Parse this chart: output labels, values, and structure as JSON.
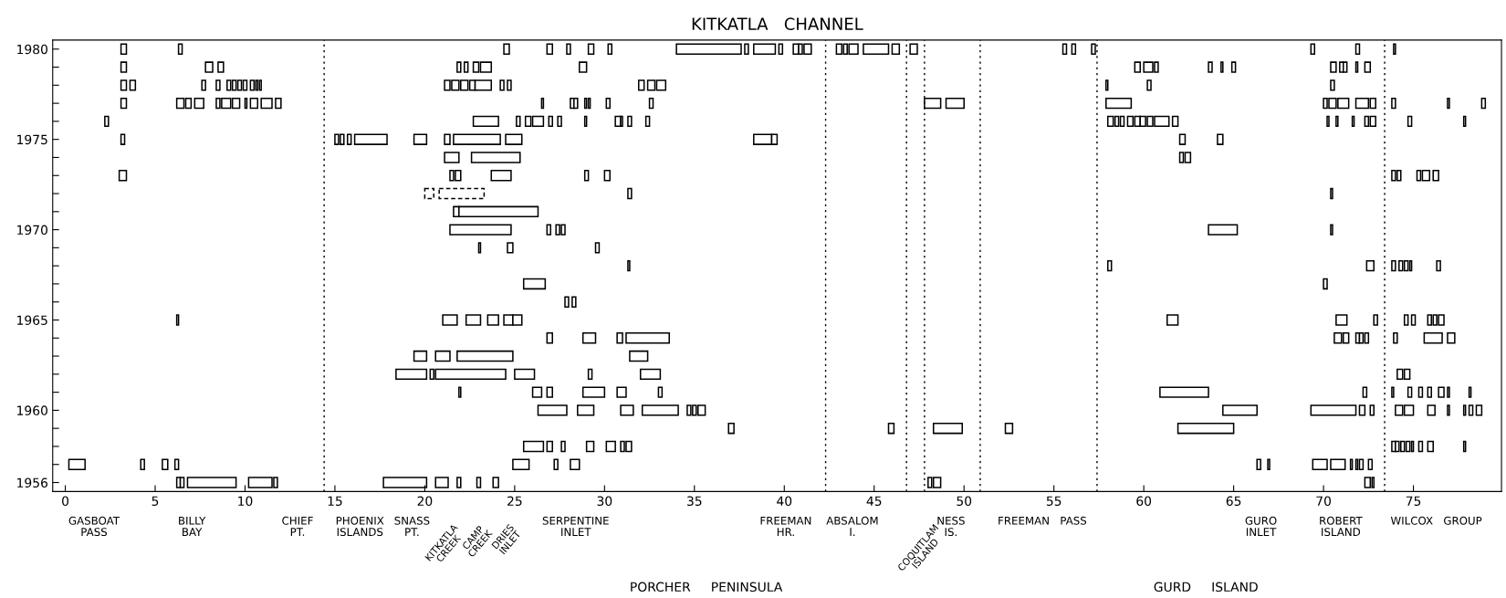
{
  "chart_data": {
    "type": "bar",
    "orientation": "horizontal",
    "title": "KITKATLA   CHANNEL",
    "categories": [
      "1980",
      null,
      null,
      null,
      null,
      "1975",
      null,
      null,
      null,
      null,
      "1970",
      null,
      null,
      null,
      null,
      "1965",
      null,
      null,
      null,
      null,
      "1960",
      null,
      null,
      null,
      "1956"
    ],
    "xlim": [
      -0.7,
      79.9
    ],
    "xticks": [
      0,
      5,
      10,
      15,
      20,
      25,
      30,
      35,
      40,
      45,
      50,
      55,
      60,
      65,
      70,
      75
    ],
    "series": [
      {
        "color": "#ffffff",
        "base": [
          3.1,
          3.1,
          3.1,
          3.1,
          2.2,
          3.1,
          21.1,
          3.0,
          31.3,
          21.6,
          21.4,
          23.0,
          31.3,
          25.5,
          27.8,
          6.2,
          26.8,
          19.4,
          18.4,
          21.9,
          26.3,
          36.9,
          25.5,
          0.2,
          6.2
        ],
        "values": [
          0.3,
          0.3,
          0.3,
          0.3,
          0.2,
          0.2,
          0.8,
          0.4,
          0.2,
          0.3,
          3.4,
          0.1,
          0.1,
          1.2,
          0.2,
          0.1,
          0.3,
          0.7,
          1.7,
          0.1,
          1.6,
          0.3,
          1.1,
          0.9,
          0.2
        ]
      },
      {
        "color": "#ffffff",
        "base": [
          6.3,
          7.8,
          3.6,
          6.2,
          22.7,
          15.0,
          22.6,
          21.4,
          70.4,
          21.9,
          26.8,
          24.6,
          58.0,
          70.0,
          28.2,
          21.0,
          28.8,
          20.6,
          20.3,
          26.0,
          28.5,
          45.8,
          26.8,
          4.2,
          6.4
        ],
        "values": [
          0.2,
          0.4,
          0.3,
          0.4,
          1.4,
          0.2,
          2.7,
          0.2,
          0.1,
          4.4,
          0.2,
          0.3,
          0.2,
          0.2,
          0.2,
          0.8,
          0.7,
          0.8,
          0.2,
          0.5,
          0.9,
          0.3,
          0.3,
          0.2,
          0.2
        ]
      },
      {
        "color": "#ffffff",
        "base": [
          24.4,
          8.5,
          7.6,
          6.7,
          25.1,
          15.3,
          62.0,
          21.7,
          null,
          null,
          27.3,
          29.5,
          72.4,
          null,
          null,
          22.3,
          30.7,
          21.8,
          20.6,
          26.8,
          30.9,
          48.3,
          27.6,
          5.4,
          6.8
        ],
        "values": [
          0.3,
          0.3,
          0.2,
          0.3,
          0.2,
          0.2,
          0.2,
          0.3,
          null,
          null,
          0.2,
          0.2,
          0.4,
          null,
          null,
          0.8,
          0.3,
          3.1,
          3.9,
          0.3,
          0.7,
          1.6,
          0.2,
          0.3,
          2.7
        ]
      },
      {
        "color": "#ffffff",
        "base": [
          26.8,
          21.8,
          8.4,
          7.2,
          25.6,
          15.7,
          62.3,
          23.7,
          null,
          null,
          27.6,
          null,
          73.8,
          null,
          null,
          23.5,
          31.2,
          31.4,
          25.0,
          28.8,
          32.1,
          52.3,
          29.0,
          6.1,
          10.2
        ],
        "values": [
          0.3,
          0.2,
          0.2,
          0.5,
          0.3,
          0.2,
          0.3,
          1.1,
          null,
          null,
          0.2,
          null,
          0.2,
          null,
          null,
          0.6,
          2.4,
          1.0,
          1.1,
          1.2,
          2.0,
          0.4,
          0.4,
          0.2,
          1.3
        ]
      },
      {
        "color": "#ffffff",
        "base": [
          27.9,
          22.2,
          9.0,
          8.4,
          26.0,
          16.1,
          null,
          28.9,
          null,
          null,
          63.6,
          null,
          74.2,
          null,
          null,
          24.4,
          70.6,
          null,
          29.1,
          30.7,
          34.6,
          61.9,
          30.1,
          24.9,
          11.6
        ],
        "values": [
          0.2,
          0.2,
          0.2,
          0.2,
          0.6,
          1.8,
          null,
          0.2,
          null,
          null,
          1.6,
          null,
          0.2,
          null,
          null,
          0.5,
          0.4,
          null,
          0.2,
          0.5,
          0.2,
          3.1,
          0.5,
          0.9,
          0.2
        ]
      },
      {
        "color": "#ffffff",
        "base": [
          29.1,
          22.7,
          9.3,
          8.7,
          26.9,
          19.4,
          null,
          30.0,
          null,
          null,
          70.4,
          null,
          74.5,
          null,
          null,
          24.9,
          71.1,
          null,
          32.0,
          33.0,
          34.9,
          null,
          30.9,
          27.2,
          17.7
        ],
        "values": [
          0.3,
          0.3,
          0.2,
          0.5,
          0.2,
          0.7,
          null,
          0.3,
          null,
          null,
          0.1,
          null,
          0.2,
          null,
          null,
          0.5,
          0.3,
          null,
          1.1,
          0.2,
          0.2,
          null,
          0.2,
          0.2,
          2.4
        ]
      },
      {
        "color": "#ffffff",
        "base": [
          30.2,
          23.1,
          9.6,
          9.3,
          27.4,
          21.1,
          null,
          73.8,
          null,
          null,
          null,
          null,
          74.8,
          null,
          null,
          61.3,
          71.8,
          null,
          74.1,
          60.9,
          35.2,
          null,
          31.2,
          28.1,
          20.6
        ],
        "values": [
          0.2,
          0.6,
          0.2,
          0.4,
          0.2,
          0.3,
          null,
          0.2,
          null,
          null,
          null,
          null,
          0.1,
          null,
          null,
          0.6,
          0.2,
          null,
          0.3,
          2.7,
          0.4,
          null,
          0.3,
          0.5,
          0.7
        ]
      },
      {
        "color": "#ffffff",
        "base": [
          34.0,
          28.6,
          9.9,
          10.0,
          28.9,
          21.6,
          null,
          74.1,
          null,
          null,
          null,
          null,
          76.3,
          null,
          null,
          70.7,
          72.0,
          null,
          74.5,
          72.2,
          64.4,
          null,
          73.8,
          66.3,
          21.8
        ],
        "values": [
          3.6,
          0.4,
          0.2,
          0.1,
          0.1,
          2.6,
          null,
          0.2,
          null,
          null,
          null,
          null,
          0.2,
          null,
          null,
          0.6,
          0.2,
          null,
          0.3,
          0.2,
          1.9,
          null,
          0.2,
          0.2,
          0.2
        ]
      },
      {
        "color": "#ffffff",
        "base": [
          37.8,
          59.5,
          10.3,
          10.3,
          30.6,
          24.5,
          null,
          75.2,
          null,
          null,
          null,
          null,
          null,
          null,
          null,
          72.8,
          72.3,
          null,
          null,
          73.8,
          69.3,
          null,
          74.0,
          66.9,
          22.9
        ],
        "values": [
          0.2,
          0.3,
          0.2,
          0.4,
          0.3,
          0.9,
          null,
          0.2,
          null,
          null,
          null,
          null,
          null,
          null,
          null,
          0.2,
          0.2,
          null,
          null,
          0.1,
          2.5,
          null,
          0.2,
          0.1,
          0.2
        ]
      },
      {
        "color": "#ffffff",
        "base": [
          38.3,
          60.0,
          10.6,
          10.9,
          30.9,
          38.3,
          null,
          75.5,
          null,
          null,
          null,
          null,
          null,
          null,
          null,
          74.5,
          73.9,
          null,
          null,
          74.7,
          72.0,
          null,
          74.3,
          69.4,
          23.8
        ],
        "values": [
          1.2,
          0.5,
          0.1,
          0.6,
          0.1,
          1.0,
          null,
          0.4,
          null,
          null,
          null,
          null,
          null,
          null,
          null,
          0.2,
          0.2,
          null,
          null,
          0.2,
          0.3,
          null,
          0.2,
          0.8,
          0.3
        ]
      },
      {
        "color": "#ffffff",
        "base": [
          39.7,
          60.6,
          10.8,
          11.7,
          31.3,
          39.3,
          null,
          76.1,
          null,
          null,
          null,
          null,
          null,
          null,
          null,
          74.9,
          75.6,
          null,
          null,
          75.3,
          72.6,
          null,
          74.6,
          70.4,
          48.0
        ],
        "values": [
          0.2,
          0.2,
          0.1,
          0.3,
          0.2,
          0.3,
          null,
          0.3,
          null,
          null,
          null,
          null,
          null,
          null,
          null,
          0.2,
          1.0,
          null,
          null,
          0.2,
          0.2,
          null,
          0.2,
          0.8,
          0.2
        ]
      },
      {
        "color": "#ffffff",
        "base": [
          40.5,
          63.6,
          21.1,
          26.5,
          32.3,
          62.0,
          null,
          null,
          null,
          null,
          null,
          null,
          null,
          null,
          null,
          75.8,
          76.9,
          null,
          null,
          75.8,
          74.0,
          null,
          74.9,
          71.5,
          48.3
        ],
        "values": [
          0.3,
          0.2,
          0.3,
          0.1,
          0.2,
          0.3,
          null,
          null,
          null,
          null,
          null,
          null,
          null,
          null,
          null,
          0.2,
          0.4,
          null,
          null,
          0.2,
          0.4,
          null,
          0.1,
          0.1,
          0.4
        ]
      },
      {
        "color": "#ffffff",
        "base": [
          40.8,
          64.3,
          21.5,
          28.1,
          58.0,
          64.1,
          null,
          null,
          null,
          null,
          null,
          null,
          null,
          null,
          null,
          76.1,
          null,
          null,
          null,
          76.4,
          74.5,
          null,
          75.3,
          71.8,
          72.3
        ],
        "values": [
          0.2,
          0.1,
          0.4,
          0.2,
          0.3,
          0.3,
          null,
          null,
          null,
          null,
          null,
          null,
          null,
          null,
          null,
          0.2,
          null,
          null,
          null,
          0.3,
          0.5,
          null,
          0.2,
          0.1,
          0.3
        ]
      },
      {
        "color": "#ffffff",
        "base": [
          41.1,
          64.9,
          22.0,
          28.3,
          58.4,
          null,
          null,
          null,
          null,
          null,
          null,
          null,
          null,
          null,
          null,
          76.4,
          null,
          null,
          null,
          76.9,
          75.8,
          null,
          75.8,
          72.0,
          72.7
        ],
        "values": [
          0.4,
          0.2,
          0.4,
          0.2,
          0.2,
          null,
          null,
          null,
          null,
          null,
          null,
          null,
          null,
          null,
          null,
          0.3,
          null,
          null,
          null,
          0.1,
          0.4,
          null,
          0.3,
          0.2,
          0.1
        ]
      },
      {
        "color": "#ffffff",
        "base": [
          42.9,
          70.4,
          22.5,
          28.9,
          58.7,
          null,
          null,
          null,
          null,
          null,
          null,
          null,
          null,
          null,
          null,
          null,
          null,
          null,
          null,
          78.1,
          76.9,
          null,
          77.8,
          72.5,
          null
        ],
        "values": [
          0.3,
          0.3,
          0.3,
          0.1,
          0.2,
          null,
          null,
          null,
          null,
          null,
          null,
          null,
          null,
          null,
          null,
          null,
          null,
          null,
          null,
          0.1,
          0.1,
          null,
          0.1,
          0.2,
          null
        ]
      },
      {
        "color": "#ffffff",
        "base": [
          43.3,
          70.9,
          22.8,
          29.1,
          59.1,
          null,
          null,
          null,
          null,
          null,
          null,
          null,
          null,
          null,
          null,
          null,
          null,
          null,
          null,
          null,
          77.8,
          null,
          null,
          null,
          null
        ],
        "values": [
          0.2,
          0.2,
          0.9,
          0.1,
          0.3,
          null,
          null,
          null,
          null,
          null,
          null,
          null,
          null,
          null,
          null,
          null,
          null,
          null,
          null,
          null,
          0.1,
          null,
          null,
          null,
          null
        ]
      },
      {
        "color": "#ffffff",
        "base": [
          43.6,
          71.1,
          24.2,
          30.1,
          59.5,
          null,
          null,
          null,
          null,
          null,
          null,
          null,
          null,
          null,
          null,
          null,
          null,
          null,
          null,
          null,
          78.1,
          null,
          null,
          null,
          null
        ],
        "values": [
          0.5,
          0.2,
          0.2,
          0.2,
          0.3,
          null,
          null,
          null,
          null,
          null,
          null,
          null,
          null,
          null,
          null,
          null,
          null,
          null,
          null,
          null,
          0.2,
          null,
          null,
          null,
          null
        ]
      },
      {
        "color": "#ffffff",
        "base": [
          44.4,
          71.8,
          24.6,
          32.5,
          59.8,
          null,
          null,
          null,
          null,
          null,
          null,
          null,
          null,
          null,
          null,
          null,
          null,
          null,
          null,
          null,
          78.5,
          null,
          null,
          null,
          null
        ],
        "values": [
          1.4,
          0.1,
          0.2,
          0.2,
          0.3,
          null,
          null,
          null,
          null,
          null,
          null,
          null,
          null,
          null,
          null,
          null,
          null,
          null,
          null,
          null,
          0.3,
          null,
          null,
          null,
          null
        ]
      },
      {
        "color": "#ffffff",
        "base": [
          46.0,
          72.3,
          31.9,
          47.8,
          60.2,
          null,
          null,
          null,
          null,
          null,
          null,
          null,
          null,
          null,
          null,
          null,
          null,
          null,
          null,
          null,
          null,
          null,
          null,
          null,
          null
        ],
        "values": [
          0.4,
          0.3,
          0.3,
          0.9,
          0.3,
          null,
          null,
          null,
          null,
          null,
          null,
          null,
          null,
          null,
          null,
          null,
          null,
          null,
          null,
          null,
          null,
          null,
          null,
          null,
          null
        ]
      },
      {
        "color": "#ffffff",
        "base": [
          47.0,
          null,
          32.4,
          49.0,
          60.6,
          null,
          null,
          null,
          null,
          null,
          null,
          null,
          null,
          null,
          null,
          null,
          null,
          null,
          null,
          null,
          null,
          null,
          null,
          null,
          null
        ],
        "values": [
          0.4,
          null,
          0.4,
          1.0,
          0.8,
          null,
          null,
          null,
          null,
          null,
          null,
          null,
          null,
          null,
          null,
          null,
          null,
          null,
          null,
          null,
          null,
          null,
          null,
          null,
          null
        ]
      },
      {
        "color": "#ffffff",
        "base": [
          55.5,
          null,
          32.9,
          57.9,
          61.6,
          null,
          null,
          null,
          null,
          null,
          null,
          null,
          null,
          null,
          null,
          null,
          null,
          null,
          null,
          null,
          null,
          null,
          null,
          null,
          null
        ],
        "values": [
          0.2,
          null,
          0.5,
          1.4,
          0.3,
          null,
          null,
          null,
          null,
          null,
          null,
          null,
          null,
          null,
          null,
          null,
          null,
          null,
          null,
          null,
          null,
          null,
          null,
          null,
          null
        ]
      },
      {
        "color": "#ffffff",
        "base": [
          56.0,
          null,
          57.9,
          70.0,
          70.2,
          null,
          null,
          null,
          null,
          null,
          null,
          null,
          null,
          null,
          null,
          null,
          null,
          null,
          null,
          null,
          null,
          null,
          null,
          null,
          null
        ],
        "values": [
          0.2,
          null,
          0.1,
          0.2,
          0.1,
          null,
          null,
          null,
          null,
          null,
          null,
          null,
          null,
          null,
          null,
          null,
          null,
          null,
          null,
          null,
          null,
          null,
          null,
          null,
          null
        ]
      },
      {
        "color": "#ffffff",
        "base": [
          57.1,
          null,
          60.2,
          70.3,
          70.7,
          null,
          null,
          null,
          null,
          null,
          null,
          null,
          null,
          null,
          null,
          null,
          null,
          null,
          null,
          null,
          null,
          null,
          null,
          null,
          null
        ],
        "values": [
          0.2,
          null,
          0.2,
          0.4,
          0.1,
          null,
          null,
          null,
          null,
          null,
          null,
          null,
          null,
          null,
          null,
          null,
          null,
          null,
          null,
          null,
          null,
          null,
          null,
          null,
          null
        ]
      },
      {
        "color": "#ffffff",
        "base": [
          69.3,
          null,
          70.4,
          70.8,
          71.6,
          null,
          null,
          null,
          null,
          null,
          null,
          null,
          null,
          null,
          null,
          null,
          null,
          null,
          null,
          null,
          null,
          null,
          null,
          null,
          null
        ],
        "values": [
          0.2,
          null,
          0.2,
          0.6,
          0.1,
          null,
          null,
          null,
          null,
          null,
          null,
          null,
          null,
          null,
          null,
          null,
          null,
          null,
          null,
          null,
          null,
          null,
          null,
          null,
          null
        ]
      },
      {
        "color": "#ffffff",
        "base": [
          71.8,
          null,
          null,
          71.8,
          72.3,
          null,
          null,
          null,
          null,
          null,
          null,
          null,
          null,
          null,
          null,
          null,
          null,
          null,
          null,
          null,
          null,
          null,
          null,
          null,
          null
        ],
        "values": [
          0.2,
          null,
          null,
          0.7,
          0.2,
          null,
          null,
          null,
          null,
          null,
          null,
          null,
          null,
          null,
          null,
          null,
          null,
          null,
          null,
          null,
          null,
          null,
          null,
          null,
          null
        ]
      },
      {
        "color": "#ffffff",
        "base": [
          73.9,
          null,
          null,
          72.6,
          72.6,
          null,
          null,
          null,
          null,
          null,
          null,
          null,
          null,
          null,
          null,
          null,
          null,
          null,
          null,
          null,
          null,
          null,
          null,
          null,
          null
        ],
        "values": [
          0.1,
          null,
          null,
          0.3,
          0.3,
          null,
          null,
          null,
          null,
          null,
          null,
          null,
          null,
          null,
          null,
          null,
          null,
          null,
          null,
          null,
          null,
          null,
          null,
          null,
          null
        ]
      },
      {
        "color": "#ffffff",
        "base": [
          null,
          null,
          null,
          73.8,
          74.7,
          null,
          null,
          null,
          null,
          null,
          null,
          null,
          null,
          null,
          null,
          null,
          null,
          null,
          null,
          null,
          null,
          null,
          null,
          null,
          null
        ],
        "values": [
          null,
          null,
          null,
          0.2,
          0.2,
          null,
          null,
          null,
          null,
          null,
          null,
          null,
          null,
          null,
          null,
          null,
          null,
          null,
          null,
          null,
          null,
          null,
          null,
          null,
          null
        ]
      },
      {
        "color": "#ffffff",
        "base": [
          null,
          null,
          null,
          76.9,
          77.8,
          null,
          null,
          null,
          null,
          null,
          null,
          null,
          null,
          null,
          null,
          null,
          null,
          null,
          null,
          null,
          null,
          null,
          null,
          null,
          null
        ],
        "values": [
          null,
          null,
          null,
          0.1,
          0.1,
          null,
          null,
          null,
          null,
          null,
          null,
          null,
          null,
          null,
          null,
          null,
          null,
          null,
          null,
          null,
          null,
          null,
          null,
          null,
          null
        ]
      },
      {
        "color": "#ffffff",
        "base": [
          null,
          null,
          null,
          78.8,
          null,
          null,
          null,
          null,
          null,
          null,
          null,
          null,
          null,
          null,
          null,
          null,
          null,
          null,
          null,
          null,
          null,
          null,
          null,
          null,
          null
        ],
        "values": [
          null,
          null,
          null,
          0.2,
          null,
          null,
          null,
          null,
          null,
          null,
          null,
          null,
          null,
          null,
          null,
          null,
          null,
          null,
          null,
          null,
          null,
          null,
          null,
          null,
          null
        ]
      },
      {
        "color": "#ffffff",
        "line_style": "dashed",
        "base": [
          null,
          null,
          null,
          null,
          null,
          null,
          null,
          null,
          20.0,
          null,
          null,
          null,
          null,
          null,
          null,
          null,
          null,
          null,
          null,
          null,
          null,
          null,
          null,
          null,
          null
        ],
        "values": [
          null,
          null,
          null,
          null,
          null,
          null,
          null,
          null,
          0.5,
          null,
          null,
          null,
          null,
          null,
          null,
          null,
          null,
          null,
          null,
          null,
          null,
          null,
          null,
          null,
          null
        ]
      },
      {
        "color": "#ffffff",
        "line_style": "dashed",
        "base": [
          null,
          null,
          null,
          null,
          null,
          null,
          null,
          null,
          20.8,
          null,
          null,
          null,
          null,
          null,
          null,
          null,
          null,
          null,
          null,
          null,
          null,
          null,
          null,
          null,
          null
        ],
        "values": [
          null,
          null,
          null,
          null,
          null,
          null,
          null,
          null,
          2.5,
          null,
          null,
          null,
          null,
          null,
          null,
          null,
          null,
          null,
          null,
          null,
          null,
          null,
          null,
          null,
          null
        ]
      }
    ],
    "ref_lines": [
      {
        "axis": "x",
        "value": 14.4,
        "color": "#000000",
        "line_style": "dotted"
      },
      {
        "axis": "x",
        "value": 42.3,
        "color": "#000000",
        "line_style": "dotted"
      },
      {
        "axis": "x",
        "value": 46.8,
        "color": "#000000",
        "line_style": "dotted"
      },
      {
        "axis": "x",
        "value": 47.8,
        "color": "#000000",
        "line_style": "dotted"
      },
      {
        "axis": "x",
        "value": 50.9,
        "color": "#000000",
        "line_style": "dotted"
      },
      {
        "axis": "x",
        "value": 57.4,
        "color": "#000000",
        "line_style": "dotted"
      },
      {
        "axis": "x",
        "value": 73.4,
        "color": "#000000",
        "line_style": "dotted"
      }
    ],
    "annotations": [
      "GASBOAT\nPASS",
      "BILLY\nBAY",
      "CHIEF\nPT.",
      "PHOENIX\nISLANDS",
      "SNASS\nPT.",
      "KITKATLA\nCREEK",
      "CAMP\nCREEK",
      "DRIES\nINLET",
      "SERPENTINE\nINLET",
      "FREEMAN\nHR.",
      "ABSALOM\nI.",
      "COQUITLAM\nISLAND",
      "NESS\nIS.",
      "FREEMAN   PASS",
      "GURO\nINLET",
      "ROBERT\nISLAND",
      "WILCOX   GROUP",
      "PORCHER     PENINSULA",
      "GURD     ISLAND"
    ]
  }
}
